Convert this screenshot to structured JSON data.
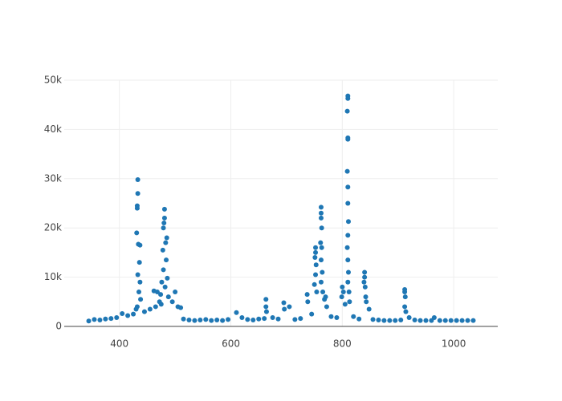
{
  "chart_data": {
    "type": "scatter",
    "color": "#1f77b4",
    "grid": true,
    "xlim": [
      301,
      1079
    ],
    "ylim": [
      0,
      50000
    ],
    "xticks": [
      400,
      600,
      800,
      1000
    ],
    "yticks": [
      0,
      {
        "value": 10000,
        "label": "10k"
      },
      {
        "value": 20000,
        "label": "20k"
      },
      {
        "value": 30000,
        "label": "30k"
      },
      {
        "value": 40000,
        "label": "40k"
      },
      {
        "value": 50000,
        "label": "50k"
      }
    ],
    "x": [
      345,
      355,
      365,
      375,
      385,
      395,
      405,
      415,
      425,
      430,
      445,
      455,
      465,
      475,
      495,
      505,
      515,
      525,
      535,
      545,
      555,
      565,
      575,
      585,
      595,
      610,
      620,
      630,
      640,
      650,
      660,
      675,
      685,
      715,
      725,
      745,
      780,
      790,
      820,
      830,
      855,
      865,
      875,
      885,
      895,
      905,
      920,
      930,
      940,
      950,
      960,
      975,
      985,
      995,
      1005,
      1015,
      1025,
      1035,
      433,
      433,
      432,
      432,
      431,
      434,
      437,
      436,
      433,
      437,
      435,
      438,
      432,
      481,
      481,
      480,
      479,
      485,
      483,
      478,
      484,
      479,
      486,
      476,
      482,
      474,
      488,
      472,
      468,
      500,
      510,
      462,
      663,
      663,
      664,
      695,
      696,
      705,
      737,
      738,
      752,
      752,
      751,
      753,
      752,
      750,
      754,
      762,
      762,
      762,
      763,
      761,
      763,
      762,
      764,
      762,
      765,
      768,
      770,
      772,
      800,
      802,
      799,
      805,
      810,
      810,
      809,
      810,
      810,
      809,
      810,
      810,
      811,
      810,
      809,
      810,
      811,
      810,
      812,
      813,
      840,
      840,
      839,
      841,
      842,
      843,
      848,
      912,
      912,
      913,
      912,
      914,
      965
    ],
    "values": [
      1100,
      1400,
      1300,
      1500,
      1600,
      1800,
      2600,
      2200,
      2500,
      3500,
      3000,
      3500,
      4000,
      4500,
      5000,
      4000,
      1500,
      1300,
      1200,
      1300,
      1400,
      1200,
      1300,
      1200,
      1400,
      2800,
      1800,
      1400,
      1300,
      1500,
      1600,
      1800,
      1500,
      1400,
      1600,
      2500,
      2000,
      1800,
      2000,
      1500,
      1400,
      1300,
      1200,
      1200,
      1200,
      1300,
      1800,
      1300,
      1200,
      1200,
      1200,
      1200,
      1200,
      1200,
      1200,
      1200,
      1200,
      1200,
      29800,
      27000,
      24500,
      24000,
      19000,
      16700,
      16500,
      13000,
      10500,
      9000,
      7000,
      5500,
      4000,
      23800,
      22000,
      21000,
      20000,
      18000,
      17000,
      15500,
      13500,
      11500,
      9800,
      9000,
      8000,
      6500,
      6000,
      5000,
      7000,
      7000,
      3800,
      7200,
      5500,
      4000,
      3000,
      4800,
      3500,
      4000,
      6500,
      5000,
      16000,
      15000,
      14000,
      12500,
      10500,
      8500,
      7000,
      24200,
      23000,
      22000,
      20000,
      17000,
      16000,
      13500,
      11000,
      9000,
      7000,
      5500,
      6000,
      4000,
      8000,
      7000,
      6000,
      4500,
      46800,
      46300,
      43700,
      38300,
      38000,
      31500,
      28300,
      25000,
      21300,
      18500,
      16000,
      13500,
      11000,
      9000,
      7000,
      5000,
      11000,
      10000,
      9000,
      8000,
      6000,
      5000,
      3500,
      7500,
      7000,
      6000,
      4000,
      3000,
      1800
    ]
  }
}
